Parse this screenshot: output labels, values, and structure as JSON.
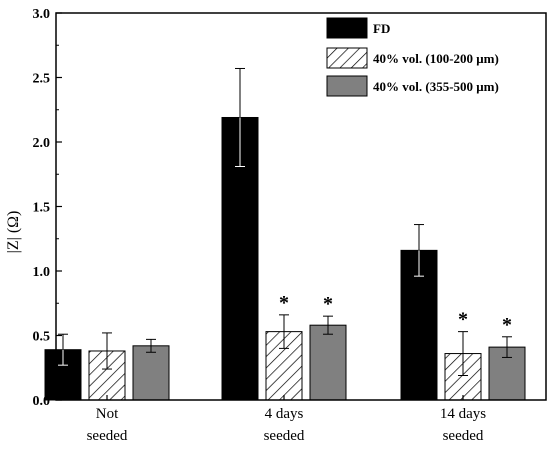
{
  "chart_data": {
    "type": "bar",
    "categories": [
      [
        "Not",
        "seeded"
      ],
      [
        "4 days",
        "seeded"
      ],
      [
        "14 days",
        "seeded"
      ]
    ],
    "series": [
      {
        "name": "FD",
        "values": [
          0.39,
          2.19,
          1.16
        ],
        "errors": [
          0.12,
          0.38,
          0.2
        ],
        "fill": "black"
      },
      {
        "name": "40% vol. (100-200 μm)",
        "values": [
          0.38,
          0.53,
          0.36
        ],
        "errors": [
          0.14,
          0.13,
          0.17
        ],
        "fill": "hatch"
      },
      {
        "name": "40% vol. (355-500 μm)",
        "values": [
          0.42,
          0.58,
          0.41
        ],
        "errors": [
          0.05,
          0.07,
          0.08
        ],
        "fill": "gray"
      }
    ],
    "significance": [
      {
        "category": 1,
        "series": 1,
        "label": "*"
      },
      {
        "category": 1,
        "series": 2,
        "label": "*"
      },
      {
        "category": 2,
        "series": 1,
        "label": "*"
      },
      {
        "category": 2,
        "series": 2,
        "label": "*"
      }
    ],
    "ylabel": "|Z| (Ω)",
    "ylim": [
      0,
      3.0
    ],
    "yticks": [
      "0.0",
      "0.5",
      "1.0",
      "1.5",
      "2.0",
      "2.5",
      "3.0"
    ],
    "legend_position": "top-right",
    "grid": false,
    "colors": {
      "FD": "#000000",
      "gray": "#808080",
      "hatch_bg": "#ffffff",
      "axis": "#000000"
    }
  }
}
